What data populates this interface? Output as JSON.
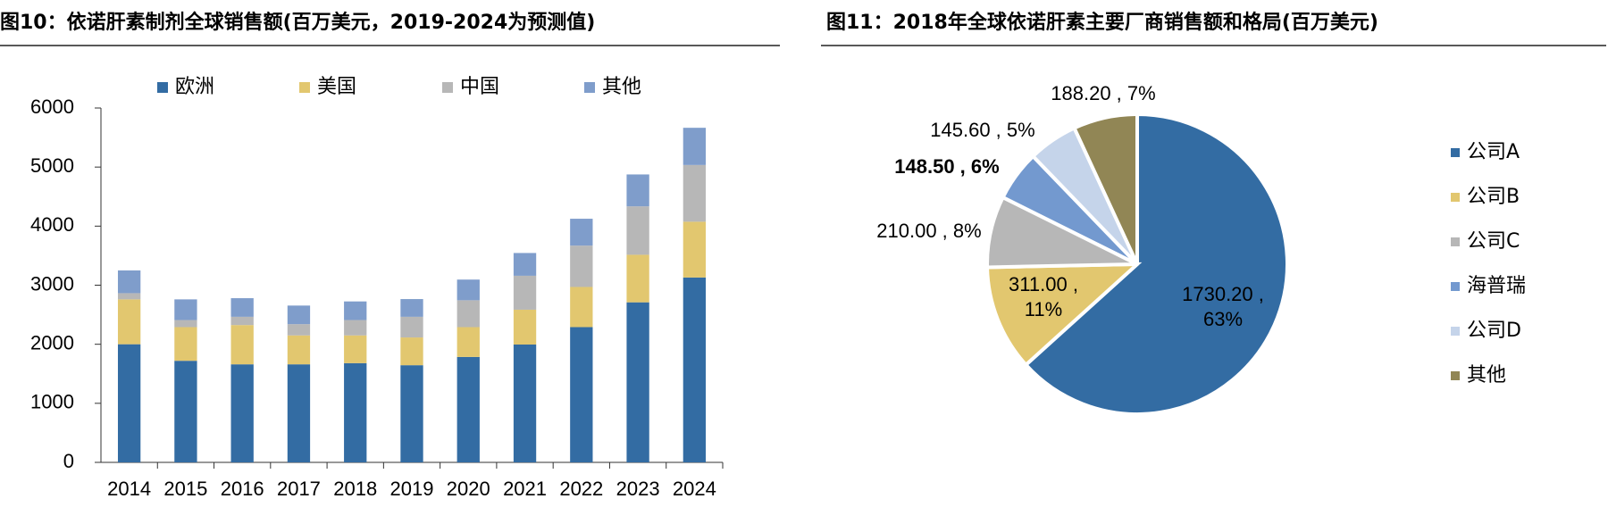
{
  "chart_data": [
    {
      "type": "bar",
      "stacked": true,
      "title": "图10：依诺肝素制剂全球销售额(百万美元，2019-2024为预测值)",
      "categories": [
        "2014",
        "2015",
        "2016",
        "2017",
        "2018",
        "2019",
        "2020",
        "2021",
        "2022",
        "2023",
        "2024"
      ],
      "series": [
        {
          "name": "欧洲",
          "color": "#336ca3",
          "values": [
            2000,
            1720,
            1660,
            1660,
            1680,
            1645,
            1785,
            1995,
            2290,
            2710,
            3130
          ]
        },
        {
          "name": "美国",
          "color": "#e2c76f",
          "values": [
            760,
            570,
            665,
            490,
            470,
            470,
            505,
            590,
            680,
            805,
            945
          ]
        },
        {
          "name": "中国",
          "color": "#b7b7b7",
          "values": [
            105,
            120,
            140,
            190,
            260,
            350,
            455,
            575,
            700,
            820,
            960
          ]
        },
        {
          "name": "其他",
          "color": "#7f9dcb",
          "values": [
            385,
            350,
            315,
            315,
            315,
            300,
            350,
            385,
            455,
            540,
            630
          ]
        }
      ],
      "ylim": [
        0,
        6000
      ],
      "yticks": [
        0,
        1000,
        2000,
        3000,
        4000,
        5000,
        6000
      ]
    },
    {
      "type": "pie",
      "title": "图11：2018年全球依诺肝素主要厂商销售额和格局(百万美元)",
      "categories": [
        "公司A",
        "公司B",
        "公司C",
        "海普瑞",
        "公司D",
        "其他"
      ],
      "values": [
        1730.2,
        311.0,
        210.0,
        148.5,
        145.6,
        188.2
      ],
      "value_labels": [
        "1730.20 , 63%",
        "311.00 , 11%",
        "210.00 , 8%",
        "148.50 , 6%",
        "145.60 , 5%",
        "188.20 , 7%"
      ],
      "colors": [
        "#336ca3",
        "#e2c76f",
        "#b7b7b7",
        "#7399cf",
        "#c5d4ea",
        "#918655"
      ]
    }
  ]
}
